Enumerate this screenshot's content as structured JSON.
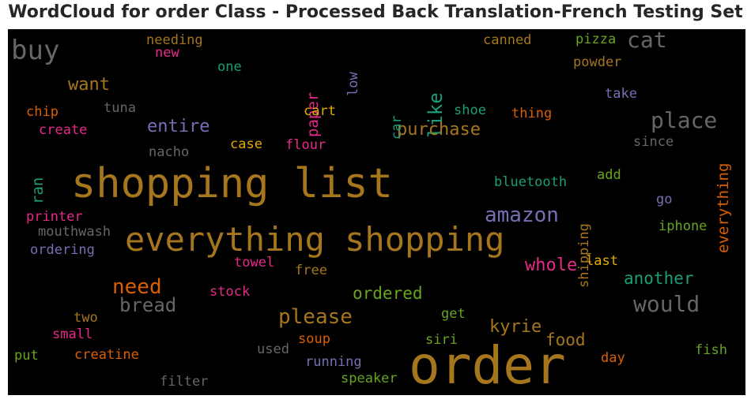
{
  "title": "WordCloud for order Class - Processed Back Translation-French Testing Set",
  "colors": {
    "background": "#000000",
    "title_text": "#262626",
    "palette": [
      "#a6761d",
      "#666666",
      "#e7298a",
      "#1b9e77",
      "#7570b3",
      "#d95f02",
      "#66a61e",
      "#e6ab02"
    ]
  },
  "words": [
    {
      "text": "order",
      "color": "#a6761d"
    },
    {
      "text": "shopping list",
      "color": "#a6761d"
    },
    {
      "text": "everything shopping",
      "color": "#a6761d"
    },
    {
      "text": "buy",
      "color": "#666666"
    },
    {
      "text": "cat",
      "color": "#666666"
    },
    {
      "text": "place",
      "color": "#666666"
    },
    {
      "text": "would",
      "color": "#666666"
    },
    {
      "text": "please",
      "color": "#a6761d"
    },
    {
      "text": "like",
      "color": "#1b9e77"
    },
    {
      "text": "amazon",
      "color": "#7570b3"
    },
    {
      "text": "need",
      "color": "#d95f02"
    },
    {
      "text": "bread",
      "color": "#666666"
    },
    {
      "text": "want",
      "color": "#a6761d"
    },
    {
      "text": "purchase",
      "color": "#a6761d"
    },
    {
      "text": "entire",
      "color": "#7570b3"
    },
    {
      "text": "whole",
      "color": "#e7298a"
    },
    {
      "text": "another",
      "color": "#1b9e77"
    },
    {
      "text": "ordered",
      "color": "#66a61e"
    },
    {
      "text": "kyrie",
      "color": "#a6761d"
    },
    {
      "text": "food",
      "color": "#a6761d"
    },
    {
      "text": "paper",
      "color": "#e7298a"
    },
    {
      "text": "everything",
      "color": "#d95f02"
    },
    {
      "text": "ran",
      "color": "#1b9e77"
    },
    {
      "text": "needing",
      "color": "#a6761d"
    },
    {
      "text": "new",
      "color": "#e7298a"
    },
    {
      "text": "one",
      "color": "#1b9e77"
    },
    {
      "text": "low",
      "color": "#7570b3"
    },
    {
      "text": "canned",
      "color": "#a6761d"
    },
    {
      "text": "pizza",
      "color": "#66a61e"
    },
    {
      "text": "powder",
      "color": "#a6761d"
    },
    {
      "text": "take",
      "color": "#7570b3"
    },
    {
      "text": "tuna",
      "color": "#666666"
    },
    {
      "text": "chip",
      "color": "#d95f02"
    },
    {
      "text": "car",
      "color": "#1b9e77"
    },
    {
      "text": "cart",
      "color": "#e6ab02"
    },
    {
      "text": "shoe",
      "color": "#1b9e77"
    },
    {
      "text": "thing",
      "color": "#d95f02"
    },
    {
      "text": "create",
      "color": "#e7298a"
    },
    {
      "text": "case",
      "color": "#e6ab02"
    },
    {
      "text": "flour",
      "color": "#e7298a"
    },
    {
      "text": "since",
      "color": "#666666"
    },
    {
      "text": "nacho",
      "color": "#666666"
    },
    {
      "text": "shipping",
      "color": "#a6761d"
    },
    {
      "text": "bluetooth",
      "color": "#1b9e77"
    },
    {
      "text": "add",
      "color": "#66a61e"
    },
    {
      "text": "go",
      "color": "#7570b3"
    },
    {
      "text": "printer",
      "color": "#e7298a"
    },
    {
      "text": "iphone",
      "color": "#66a61e"
    },
    {
      "text": "mouthwash",
      "color": "#666666"
    },
    {
      "text": "ordering",
      "color": "#7570b3"
    },
    {
      "text": "towel",
      "color": "#e7298a"
    },
    {
      "text": "last",
      "color": "#e6ab02"
    },
    {
      "text": "free",
      "color": "#a6761d"
    },
    {
      "text": "stock",
      "color": "#e7298a"
    },
    {
      "text": "two",
      "color": "#a6761d"
    },
    {
      "text": "get",
      "color": "#66a61e"
    },
    {
      "text": "small",
      "color": "#e7298a"
    },
    {
      "text": "soup",
      "color": "#d95f02"
    },
    {
      "text": "siri",
      "color": "#66a61e"
    },
    {
      "text": "put",
      "color": "#66a61e"
    },
    {
      "text": "creatine",
      "color": "#d95f02"
    },
    {
      "text": "used",
      "color": "#666666"
    },
    {
      "text": "running",
      "color": "#7570b3"
    },
    {
      "text": "day",
      "color": "#d95f02"
    },
    {
      "text": "fish",
      "color": "#66a61e"
    },
    {
      "text": "speaker",
      "color": "#66a61e"
    },
    {
      "text": "filter",
      "color": "#666666"
    }
  ]
}
